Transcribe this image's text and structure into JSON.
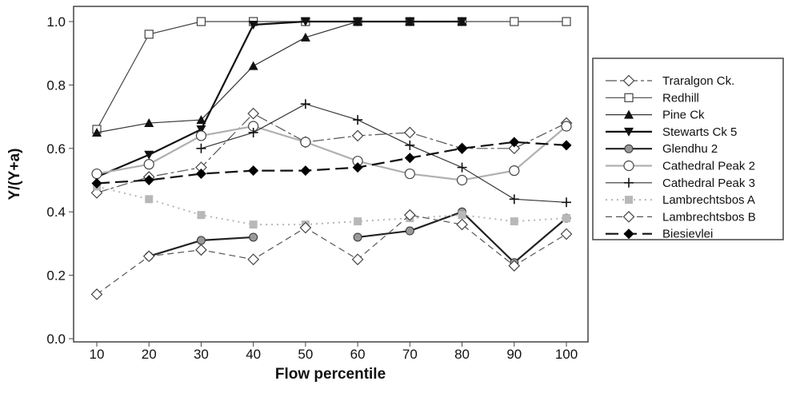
{
  "chart_data": {
    "type": "line",
    "title": "",
    "xlabel": "Flow percentile",
    "ylabel": "Y/(Y+a)",
    "x": [
      10,
      20,
      30,
      40,
      50,
      60,
      70,
      80,
      90,
      100
    ],
    "xlim": [
      5,
      105
    ],
    "ylim": [
      0.0,
      1.05
    ],
    "yticks": [
      "0.0",
      "0.2",
      "0.4",
      "0.6",
      "0.8",
      "1.0"
    ],
    "xticks": [
      "10",
      "20",
      "30",
      "40",
      "50",
      "60",
      "70",
      "80",
      "90",
      "100"
    ],
    "grid": false,
    "legend_position": "right",
    "series": [
      {
        "name": "Traralgon Ck.",
        "marker": "open-diamond",
        "style": "dashdot",
        "color": "#555555",
        "values": [
          0.46,
          0.51,
          0.54,
          0.71,
          0.62,
          0.64,
          0.65,
          0.6,
          0.6,
          0.68
        ]
      },
      {
        "name": "Redhill",
        "marker": "open-square",
        "style": "solid",
        "color": "#444444",
        "values": [
          0.66,
          0.96,
          1.0,
          1.0,
          1.0,
          1.0,
          1.0,
          1.0,
          1.0,
          1.0
        ]
      },
      {
        "name": "Pine Ck",
        "marker": "filled-triangle-up",
        "style": "solid",
        "color": "#333333",
        "values": [
          0.65,
          0.68,
          0.69,
          0.86,
          0.95,
          1.0,
          1.0,
          1.0,
          null,
          null
        ]
      },
      {
        "name": "Stewarts Ck 5",
        "marker": "filled-triangle-down",
        "style": "solid-thick",
        "color": "#111111",
        "values": [
          0.51,
          0.58,
          0.66,
          0.99,
          1.0,
          1.0,
          1.0,
          1.0,
          null,
          null
        ]
      },
      {
        "name": "Glendhu 2",
        "marker": "gray-circle",
        "style": "solid-thick",
        "color": "#222222",
        "values": [
          null,
          0.26,
          0.31,
          0.32,
          null,
          0.32,
          0.34,
          0.4,
          0.24,
          0.38
        ]
      },
      {
        "name": "Cathedral Peak 2",
        "marker": "open-circle",
        "style": "solid-gray",
        "color": "#b0b0b0",
        "values": [
          0.52,
          0.55,
          0.64,
          0.67,
          0.62,
          0.56,
          0.52,
          0.5,
          0.53,
          0.67
        ]
      },
      {
        "name": "Cathedral Peak 3",
        "marker": "plus",
        "style": "solid",
        "color": "#333333",
        "values": [
          null,
          null,
          0.6,
          0.65,
          0.74,
          0.69,
          0.61,
          0.54,
          0.44,
          0.43
        ]
      },
      {
        "name": "Lambrechtsbos A",
        "marker": "gray-square",
        "style": "dotted",
        "color": "#b5b5b5",
        "values": [
          0.48,
          0.44,
          0.39,
          0.36,
          0.36,
          0.37,
          0.38,
          0.39,
          0.37,
          0.38
        ]
      },
      {
        "name": "Lambrechtsbos B",
        "marker": "open-diamond",
        "style": "dashed",
        "color": "#555555",
        "values": [
          0.14,
          0.26,
          0.28,
          0.25,
          0.35,
          0.25,
          0.39,
          0.36,
          0.23,
          0.33
        ]
      },
      {
        "name": "Biesievlei",
        "marker": "filled-diamond",
        "style": "longdash-thick",
        "color": "#111111",
        "values": [
          0.49,
          0.5,
          0.52,
          0.53,
          0.53,
          0.54,
          0.57,
          0.6,
          0.62,
          0.61
        ]
      }
    ]
  }
}
